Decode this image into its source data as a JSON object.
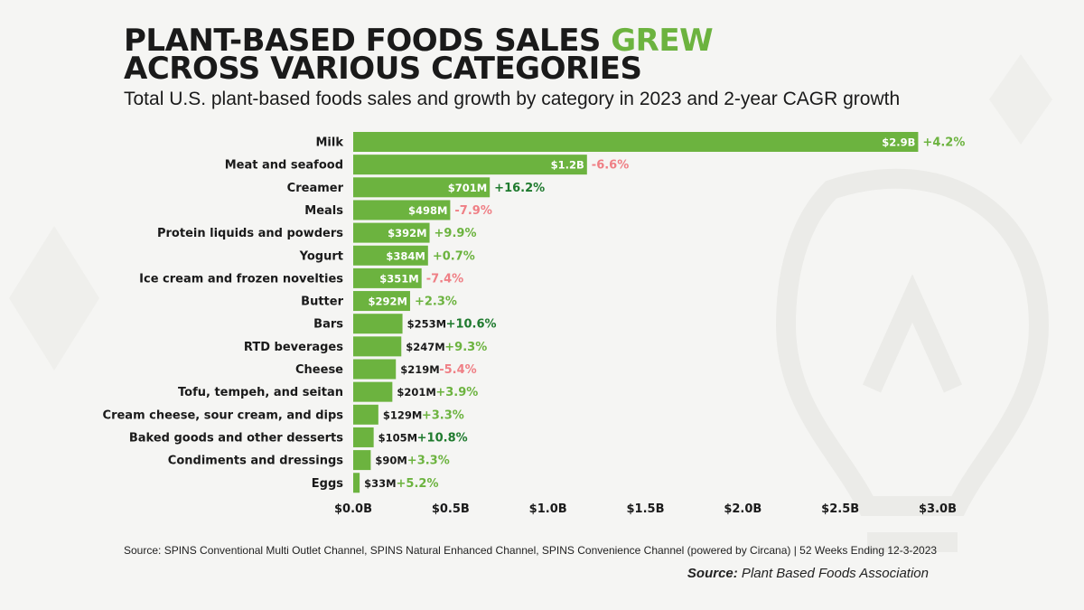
{
  "header": {
    "title_part1": "PLANT-BASED FOODS SALES ",
    "title_highlight": "GREW",
    "title_part2": " ACROSS VARIOUS CATEGORIES",
    "subtitle": "Total U.S. plant-based foods sales and growth by category in 2023 and 2-year CAGR growth"
  },
  "footer": {
    "source_note": "Source: SPINS Conventional Multi Outlet Channel, SPINS Natural Enhanced Channel, SPINS Convenience Channel (powered by Circana) | 52 Weeks Ending 12-3-2023",
    "credit_label": "Source:",
    "credit_text": " Plant Based Foods Association"
  },
  "colors": {
    "bar": "#6cb33f",
    "growth_positive": "#6cb33f",
    "growth_positive_strong": "#1f7a2e",
    "growth_negative": "#ef7f85",
    "highlight": "#6cb33f"
  },
  "chart_data": {
    "type": "bar",
    "orientation": "horizontal",
    "title": "PLANT-BASED FOODS SALES GREW ACROSS VARIOUS CATEGORIES",
    "subtitle": "Total U.S. plant-based foods sales and growth by category in 2023 and 2-year CAGR growth",
    "xlabel": "",
    "ylabel": "",
    "xlim": [
      0,
      3.0
    ],
    "x_ticks": [
      "$0.0B",
      "$0.5B",
      "$1.0B",
      "$1.5B",
      "$2.0B",
      "$2.5B",
      "$3.0B"
    ],
    "x_tick_values": [
      0,
      0.5,
      1.0,
      1.5,
      2.0,
      2.5,
      3.0
    ],
    "grid": false,
    "categories": [
      "Milk",
      "Meat and seafood",
      "Creamer",
      "Meals",
      "Protein liquids and powders",
      "Yogurt",
      "Ice cream and frozen novelties",
      "Butter",
      "Bars",
      "RTD beverages",
      "Cheese",
      "Tofu, tempeh, and seitan",
      "Cream cheese, sour cream, and dips",
      "Baked goods and other desserts",
      "Condiments and dressings",
      "Eggs"
    ],
    "values": [
      2.9,
      1.2,
      0.701,
      0.498,
      0.392,
      0.384,
      0.351,
      0.292,
      0.253,
      0.247,
      0.219,
      0.201,
      0.129,
      0.105,
      0.09,
      0.033
    ],
    "value_labels": [
      "$2.9B",
      "$1.2B",
      "$701M",
      "$498M",
      "$392M",
      "$384M",
      "$351M",
      "$292M",
      "$253M",
      "$247M",
      "$219M",
      "$201M",
      "$129M",
      "$105M",
      "$90M",
      "$33M"
    ],
    "growth_labels": [
      "+4.2%",
      "-6.6%",
      "+16.2%",
      "-7.9%",
      "+9.9%",
      "+0.7%",
      "-7.4%",
      "+2.3%",
      "+10.6%",
      "+9.3%",
      "-5.4%",
      "+3.9%",
      "+3.3%",
      "+10.8%",
      "+3.3%",
      "+5.2%"
    ],
    "growth_values": [
      4.2,
      -6.6,
      16.2,
      -7.9,
      9.9,
      0.7,
      -7.4,
      2.3,
      10.6,
      9.3,
      -5.4,
      3.9,
      3.3,
      10.8,
      3.3,
      5.2
    ]
  }
}
